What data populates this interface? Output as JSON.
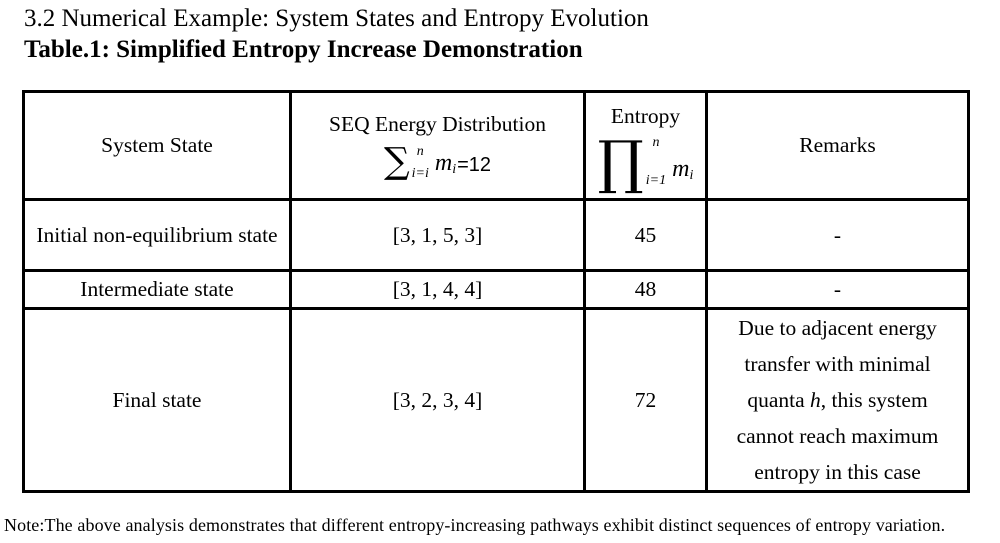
{
  "page": {
    "section_title": "3.2 Numerical Example: System States and Entropy Evolution",
    "table_title": "Table.1: Simplified Entropy Increase Demonstration",
    "note": "Note:The above analysis demonstrates that different entropy-increasing pathways exhibit distinct sequences of entropy variation."
  },
  "colors": {
    "background": "#ffffff",
    "text": "#000000",
    "border": "#000000"
  },
  "table": {
    "headers": {
      "state": "System State",
      "seq": {
        "line1": "SEQ Energy Distribution",
        "formula": {
          "op": "∑",
          "sup": "n",
          "sub": "i=i",
          "var": "m",
          "var_sub": "i",
          "tail": "=12"
        }
      },
      "entropy": {
        "line1": "Entropy",
        "formula": {
          "op": "∏",
          "sup": "n",
          "sub": "i=1",
          "var": "m",
          "var_sub": "i"
        }
      },
      "remarks": "Remarks"
    },
    "rows": [
      {
        "state": "Initial non-equilibrium state",
        "distribution": "[3, 1, 5, 3]",
        "entropy": "45",
        "remark": "-"
      },
      {
        "state": "Intermediate state",
        "distribution": "[3, 1, 4, 4]",
        "entropy": "48",
        "remark": "-"
      },
      {
        "state": "Final state",
        "distribution": "[3, 2, 3, 4]",
        "entropy": "72",
        "remark_parts": {
          "before": "Due to adjacent energy transfer with minimal quanta ",
          "italic": "h",
          "after": ", this system cannot reach maximum entropy in this case"
        }
      }
    ]
  },
  "chart_data": {
    "type": "table",
    "columns": [
      "System State",
      "SEQ Energy Distribution (sum of m_i = 12)",
      "Entropy (product of m_i)",
      "Remarks"
    ],
    "rows": [
      [
        "Initial non-equilibrium state",
        "[3, 1, 5, 3]",
        45,
        "-"
      ],
      [
        "Intermediate state",
        "[3, 1, 4, 4]",
        48,
        "-"
      ],
      [
        "Final state",
        "[3, 2, 3, 4]",
        72,
        "Due to adjacent energy transfer with minimal quanta h, this system cannot reach maximum entropy in this case"
      ]
    ]
  }
}
